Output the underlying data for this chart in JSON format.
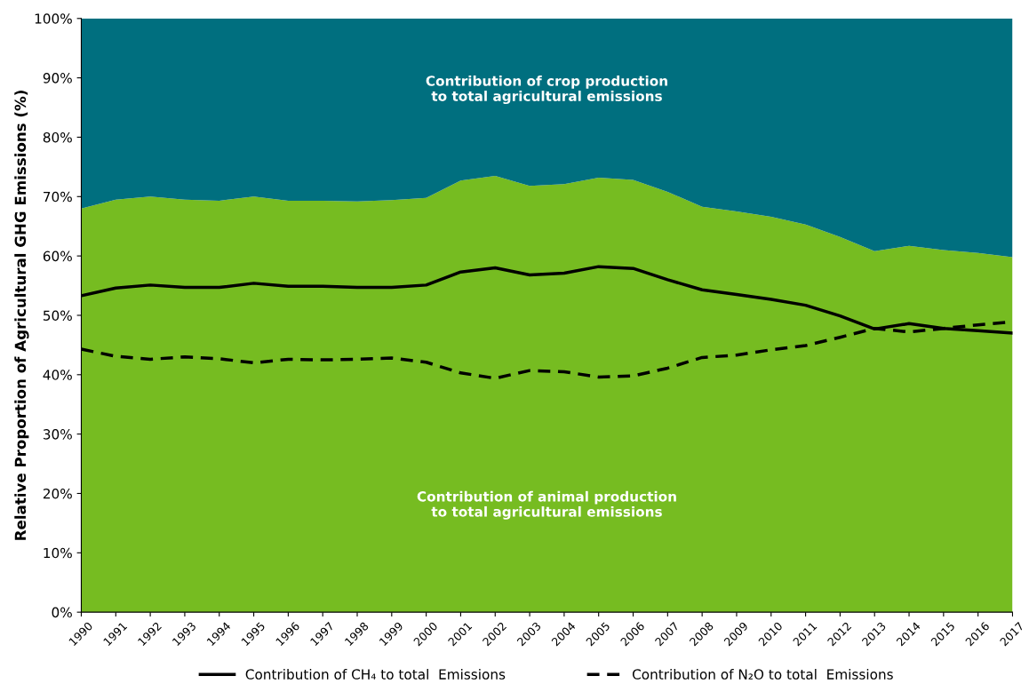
{
  "chart_data": {
    "type": "area",
    "stacked": true,
    "ylabel": "Relative Proportion of Agricultural GHG Emissions (%)",
    "x": [
      1990,
      1991,
      1992,
      1993,
      1994,
      1995,
      1996,
      1997,
      1998,
      1999,
      2000,
      2001,
      2002,
      2003,
      2004,
      2005,
      2006,
      2007,
      2008,
      2009,
      2010,
      2011,
      2012,
      2013,
      2014,
      2015,
      2016,
      2017
    ],
    "xlim": [
      1990,
      2017
    ],
    "xticks": [
      1990,
      1991,
      1992,
      1993,
      1994,
      1995,
      1996,
      1997,
      1998,
      1999,
      2000,
      2001,
      2002,
      2003,
      2004,
      2005,
      2006,
      2007,
      2008,
      2009,
      2010,
      2011,
      2012,
      2013,
      2014,
      2015,
      2016,
      2017
    ],
    "ylim": [
      0,
      100
    ],
    "yticks": [
      {
        "value": 0,
        "label": "0%"
      },
      {
        "value": 10,
        "label": "10%"
      },
      {
        "value": 20,
        "label": "20%"
      },
      {
        "value": 30,
        "label": "30%"
      },
      {
        "value": 40,
        "label": "40%"
      },
      {
        "value": 50,
        "label": "50%"
      },
      {
        "value": 60,
        "label": "60%"
      },
      {
        "value": 70,
        "label": "70%"
      },
      {
        "value": 80,
        "label": "80%"
      },
      {
        "value": 90,
        "label": "90%"
      },
      {
        "value": 100,
        "label": "100%"
      }
    ],
    "grid": false,
    "legend": "bottom",
    "series": [
      {
        "name": "Contribution of animal production\nto total agricultural emissions",
        "color": "#76bc21",
        "values": [
          68,
          69.5,
          70,
          69.5,
          69.3,
          70,
          69.3,
          69.3,
          69.2,
          69.4,
          69.8,
          72.7,
          73.5,
          71.8,
          72.1,
          73.2,
          72.8,
          70.8,
          68.3,
          67.5,
          66.6,
          65.3,
          63.2,
          60.8,
          61.7,
          61,
          60.5,
          59.8
        ]
      },
      {
        "name": "Contribution of crop production\nto total agricultural emissions",
        "color": "#006f7f",
        "values": [
          32,
          30.5,
          30,
          30.5,
          30.7,
          30,
          30.7,
          30.7,
          30.8,
          30.6,
          30.2,
          27.3,
          26.5,
          28.2,
          27.9,
          26.8,
          27.2,
          29.2,
          31.7,
          32.5,
          33.4,
          34.7,
          36.8,
          39.2,
          38.3,
          39,
          39.5,
          40.2
        ]
      },
      {
        "name": "Contribution of CH₄ to total  Emissions",
        "type": "line",
        "color": "#000000",
        "line_style": "solid",
        "values": [
          53.3,
          54.6,
          55.1,
          54.7,
          54.7,
          55.4,
          54.9,
          54.9,
          54.7,
          54.7,
          55.1,
          57.3,
          58,
          56.8,
          57.1,
          58.2,
          57.9,
          56,
          54.3,
          53.5,
          52.7,
          51.7,
          49.9,
          47.7,
          48.6,
          47.8,
          47.4,
          47.0
        ]
      },
      {
        "name": "Contribution of N₂O to total  Emissions",
        "type": "line",
        "color": "#000000",
        "line_style": "dashed",
        "values": [
          44.3,
          43.1,
          42.6,
          43,
          42.7,
          42,
          42.6,
          42.5,
          42.6,
          42.8,
          42.1,
          40.3,
          39.4,
          40.7,
          40.5,
          39.6,
          39.8,
          41.1,
          42.9,
          43.3,
          44.2,
          44.9,
          46.3,
          47.8,
          47.2,
          47.8,
          48.4,
          48.9
        ]
      }
    ]
  }
}
